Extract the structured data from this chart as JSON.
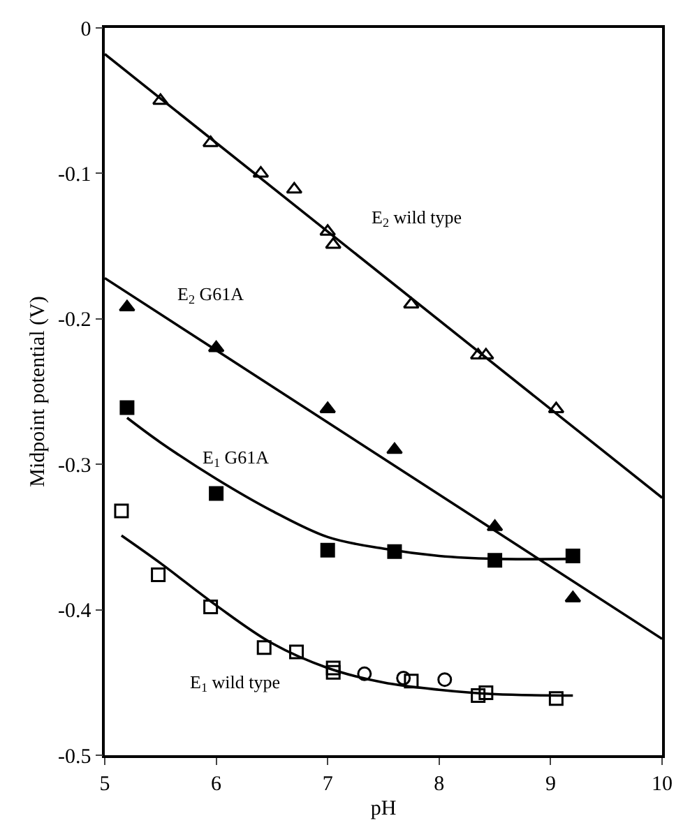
{
  "chart_data": {
    "type": "scatter",
    "xlabel": "pH",
    "ylabel": "Midpoint potential (V)",
    "xlim": [
      5,
      10
    ],
    "xticks": [
      5,
      6,
      7,
      8,
      9,
      10
    ],
    "ylim": [
      -0.5,
      0
    ],
    "yticks": [
      -0.5,
      -0.4,
      -0.3,
      -0.2,
      -0.1,
      0
    ],
    "legend": false,
    "series": [
      {
        "name": "E$_{2}$ wild type",
        "marker": "triangle-open",
        "color": "#000000",
        "x": [
          5.5,
          5.95,
          6.4,
          6.7,
          7.0,
          7.05,
          7.75,
          8.35,
          8.42,
          9.05
        ],
        "values": [
          -0.05,
          -0.079,
          -0.1,
          -0.111,
          -0.14,
          -0.149,
          -0.19,
          -0.225,
          -0.225,
          -0.262
        ]
      },
      {
        "type": "line",
        "marker": "none",
        "color": "#000000",
        "x": [
          5,
          10
        ],
        "values": [
          -0.018,
          -0.323
        ]
      },
      {
        "name": "E$_{2}$ G61A",
        "marker": "triangle",
        "color": "#000000",
        "x": [
          5.2,
          6.0,
          7.0,
          7.6,
          8.5,
          9.2
        ],
        "values": [
          -0.192,
          -0.22,
          -0.262,
          -0.29,
          -0.343,
          -0.392
        ]
      },
      {
        "type": "line",
        "marker": "none",
        "color": "#000000",
        "x": [
          5,
          10
        ],
        "values": [
          -0.172,
          -0.42
        ]
      },
      {
        "name": "E$_{1}$ G61A",
        "marker": "square",
        "color": "#000000",
        "x": [
          5.2,
          6.0,
          7.0,
          7.6,
          8.5,
          9.2
        ],
        "values": [
          -0.261,
          -0.32,
          -0.359,
          -0.36,
          -0.366,
          -0.363
        ]
      },
      {
        "type": "line",
        "marker": "none",
        "color": "#000000",
        "x": [
          5.2,
          5.5,
          6.0,
          6.5,
          7.0,
          7.5,
          8.0,
          8.5,
          9.2
        ],
        "values": [
          -0.268,
          -0.285,
          -0.31,
          -0.332,
          -0.35,
          -0.358,
          -0.363,
          -0.365,
          -0.365
        ]
      },
      {
        "name": "E$_{1}$ wild type",
        "marker": "square-open",
        "color": "#000000",
        "x": [
          5.15,
          5.48,
          5.95,
          6.43,
          6.72,
          7.05,
          7.05,
          7.75,
          8.35,
          8.42,
          9.05
        ],
        "values": [
          -0.332,
          -0.376,
          -0.398,
          -0.426,
          -0.429,
          -0.44,
          -0.443,
          -0.449,
          -0.459,
          -0.457,
          -0.461
        ]
      },
      {
        "marker": "circle-open",
        "color": "#000000",
        "x": [
          7.33,
          7.68,
          8.05
        ],
        "values": [
          -0.444,
          -0.447,
          -0.448
        ]
      },
      {
        "type": "line",
        "marker": "none",
        "color": "#000000",
        "x": [
          5.15,
          5.5,
          6.0,
          6.5,
          7.0,
          7.5,
          8.0,
          8.5,
          9.2
        ],
        "values": [
          -0.349,
          -0.368,
          -0.397,
          -0.423,
          -0.44,
          -0.45,
          -0.455,
          -0.458,
          -0.459
        ]
      }
    ]
  }
}
